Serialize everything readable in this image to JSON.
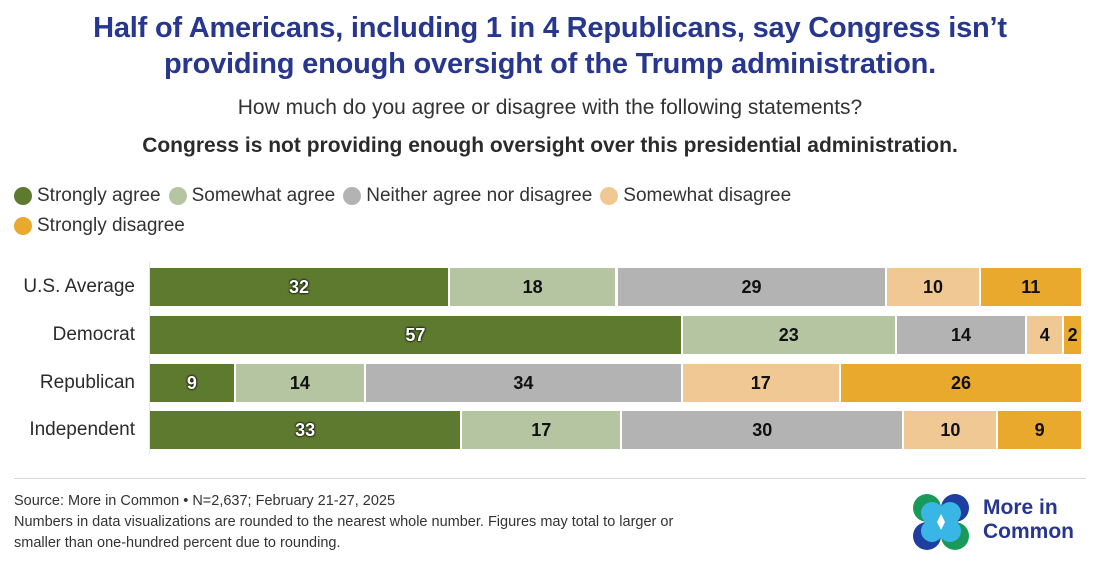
{
  "title_line1": "Half of Americans, including 1 in 4 Republicans, say Congress isn’t",
  "title_line2": "providing enough oversight of the Trump administration.",
  "subtitle": "How much do you agree or disagree with the following statements?",
  "statement": "Congress is not providing enough oversight over this presidential administration.",
  "footer": {
    "source": "Source: More in Common • N=2,637; February 21-27, 2025",
    "note_line1": "Numbers in data visualizations are rounded to the nearest whole number. Figures may total to larger or",
    "note_line2": "smaller than one-hundred percent due to rounding."
  },
  "logo": {
    "line1": "More in",
    "line2": "Common",
    "colors": [
      "#1a9a5a",
      "#1e3fa0",
      "#3ab6e6"
    ]
  },
  "chart_data": {
    "type": "bar",
    "orientation": "horizontal",
    "stacked": true,
    "title": "Half of Americans, including 1 in 4 Republicans, say Congress isn’t providing enough oversight of the Trump administration.",
    "subtitle": "How much do you agree or disagree with the following statements?",
    "xlabel": "",
    "ylabel": "",
    "xlim": [
      0,
      100
    ],
    "grid": false,
    "legend_position": "top-left",
    "categories": [
      "U.S. Average",
      "Democrat",
      "Republican",
      "Independent"
    ],
    "series": [
      {
        "name": "Strongly agree",
        "color": "#5e7a2e",
        "text": "dark",
        "values": [
          32,
          57,
          9,
          33
        ]
      },
      {
        "name": "Somewhat agree",
        "color": "#b6c5a1",
        "text": "light",
        "values": [
          18,
          23,
          14,
          17
        ]
      },
      {
        "name": "Neither agree nor disagree",
        "color": "#b3b3b3",
        "text": "light",
        "values": [
          29,
          14,
          34,
          30
        ]
      },
      {
        "name": "Somewhat disagree",
        "color": "#f0c893",
        "text": "light",
        "values": [
          10,
          4,
          17,
          10
        ]
      },
      {
        "name": "Strongly disagree",
        "color": "#e8a92c",
        "text": "light",
        "values": [
          11,
          2,
          26,
          9
        ]
      }
    ]
  }
}
